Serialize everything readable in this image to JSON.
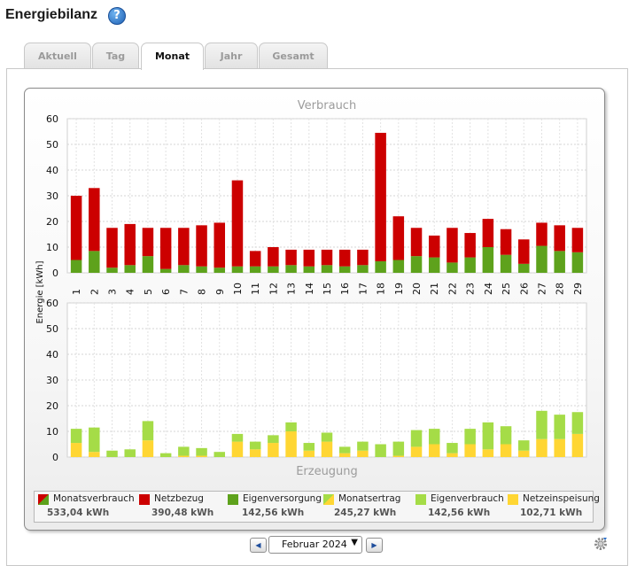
{
  "header": {
    "title": "Energiebilanz",
    "help_icon": "question-circle-icon",
    "help_glyph": "?"
  },
  "tabs": [
    {
      "label": "Aktuell",
      "active": false
    },
    {
      "label": "Tag",
      "active": false
    },
    {
      "label": "Monat",
      "active": true
    },
    {
      "label": "Jahr",
      "active": false
    },
    {
      "label": "Gesamt",
      "active": false
    }
  ],
  "chart_data": [
    {
      "type": "bar",
      "stacked": true,
      "title": "Verbrauch",
      "xlabel": "",
      "ylabel": "Energie [kWh]",
      "ylim": [
        0,
        60
      ],
      "yticks": [
        0,
        10,
        20,
        30,
        40,
        50,
        60
      ],
      "grid": true,
      "categories": [
        "1",
        "2",
        "3",
        "4",
        "5",
        "6",
        "7",
        "8",
        "9",
        "10",
        "11",
        "12",
        "13",
        "14",
        "15",
        "16",
        "17",
        "18",
        "19",
        "20",
        "21",
        "22",
        "23",
        "24",
        "25",
        "26",
        "27",
        "28",
        "29"
      ],
      "series": [
        {
          "name": "Eigenversorgung",
          "color": "#5ea21c",
          "values": [
            5,
            8.5,
            2,
            3,
            6.5,
            1.5,
            3,
            2.5,
            2,
            2.5,
            2.5,
            2.5,
            3,
            2.5,
            3,
            2.5,
            3,
            4.5,
            5,
            6.5,
            6,
            4,
            6,
            10,
            7,
            3.5,
            10.5,
            8.5,
            8
          ]
        },
        {
          "name": "Netzbezug",
          "color": "#cc0000",
          "values": [
            25,
            24.5,
            15.5,
            16,
            11,
            16,
            14.5,
            16,
            17.5,
            33.5,
            6,
            7.5,
            6,
            6.5,
            6,
            6.5,
            6,
            50,
            17,
            11,
            8.5,
            13.5,
            9.5,
            11,
            10,
            9.5,
            9,
            10,
            9.5
          ]
        }
      ]
    },
    {
      "type": "bar",
      "stacked": true,
      "title": "Erzeugung",
      "xlabel": "",
      "ylabel": "Energie [kWh]",
      "ylim": [
        0,
        60
      ],
      "yticks": [
        0,
        10,
        20,
        30,
        40,
        50,
        60
      ],
      "grid": true,
      "categories": [
        "1",
        "2",
        "3",
        "4",
        "5",
        "6",
        "7",
        "8",
        "9",
        "10",
        "11",
        "12",
        "13",
        "14",
        "15",
        "16",
        "17",
        "18",
        "19",
        "20",
        "21",
        "22",
        "23",
        "24",
        "25",
        "26",
        "27",
        "28",
        "29"
      ],
      "series": [
        {
          "name": "Netzeinspeisung",
          "color": "#ffd633",
          "values": [
            5.5,
            2,
            0,
            0,
            6.5,
            0,
            0.5,
            0.5,
            0,
            6,
            3,
            5.5,
            10,
            2.5,
            6,
            1.5,
            2.5,
            0,
            0.5,
            4,
            5,
            1.5,
            5,
            3,
            5,
            2.5,
            7,
            7,
            9
          ]
        },
        {
          "name": "Eigenverbrauch",
          "color": "#a5dc47",
          "values": [
            5.5,
            9.5,
            2.5,
            3,
            7.5,
            1.5,
            3.5,
            3,
            2,
            3,
            3,
            3,
            3.5,
            3,
            3.5,
            2.5,
            3.5,
            5,
            5.5,
            6.5,
            6,
            4,
            6,
            10.5,
            7,
            4,
            11,
            9.5,
            8.5
          ]
        }
      ]
    }
  ],
  "legend": [
    {
      "label": "Monatsverbrauch",
      "value": "533,04 kWh",
      "color": "#cc0000",
      "color2": "#5ea21c",
      "split": true
    },
    {
      "label": "Netzbezug",
      "value": "390,48 kWh",
      "color": "#cc0000"
    },
    {
      "label": "Eigenversorgung",
      "value": "142,56 kWh",
      "color": "#5ea21c"
    },
    {
      "label": "Monatsertrag",
      "value": "245,27 kWh",
      "color": "#a5dc47",
      "color2": "#ffd633",
      "split": true
    },
    {
      "label": "Eigenverbrauch",
      "value": "142,56 kWh",
      "color": "#a5dc47"
    },
    {
      "label": "Netzeinspeisung",
      "value": "102,71 kWh",
      "color": "#ffd633"
    }
  ],
  "navigation": {
    "prev_icon": "arrow-left-icon",
    "prev_glyph": "◀",
    "month_value": "Februar 2024",
    "month_options": [
      "Februar 2024"
    ],
    "caret_glyph": "▼",
    "next_icon": "arrow-right-icon",
    "next_glyph": "▶",
    "settings_icon": "gear-icon"
  }
}
